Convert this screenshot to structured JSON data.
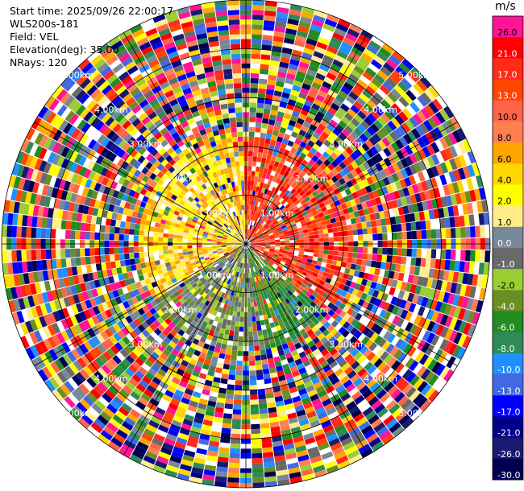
{
  "header": {
    "start_time": "Start time: 2025/09/26 22:00:17",
    "site": "WLS200s-181",
    "field": "Field: VEL",
    "elevation": "Elevation(deg): 35.00",
    "nrays": "NRays: 120"
  },
  "colorbar": {
    "unit": "m/s",
    "levels": [
      "26.0",
      "21.0",
      "17.0",
      "13.0",
      "10.0",
      "8.0",
      "6.0",
      "4.0",
      "2.0",
      "1.0",
      "0.0",
      "-1.0",
      "-2.0",
      "-4.0",
      "-6.0",
      "-8.0",
      "-10.0",
      "-13.0",
      "-17.0",
      "-21.0",
      "-26.0",
      "-30.0"
    ],
    "colors": [
      "#ff1493",
      "#ff0000",
      "#ff2a1a",
      "#ff4500",
      "#ff6347",
      "#ff7f50",
      "#ffa500",
      "#ffd700",
      "#ffff00",
      "#ffec8b",
      "#778899",
      "#696969",
      "#9acd32",
      "#6b8e23",
      "#228b22",
      "#2e8b57",
      "#1e90ff",
      "#4169e1",
      "#0000ff",
      "#00008b",
      "#191970",
      "#000050"
    ]
  },
  "chart_data": {
    "type": "ppi",
    "field": "VEL",
    "n_rays": 120,
    "ring_labels": [
      "1.00km",
      "2.00km",
      "3.00km",
      "4.00km",
      "5.00km"
    ],
    "ring_values_km": [
      1,
      2,
      3,
      4,
      5
    ],
    "max_range_km": 5.0
  }
}
